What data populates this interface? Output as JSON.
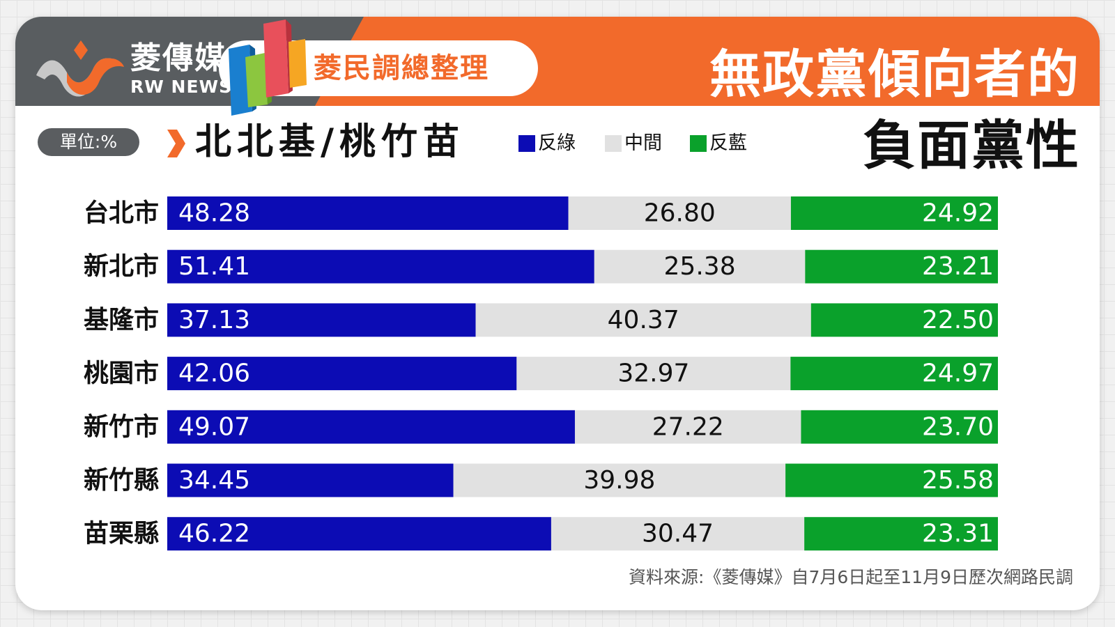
{
  "header": {
    "brand_zh": "菱傳媒",
    "brand_en": "RW NEWS",
    "badge": "菱民調總整理",
    "title_line1": "無政黨傾向者的",
    "title_line2": "負面黨性"
  },
  "unit_label": "單位:%",
  "region_title": "北北基/桃竹苗",
  "source": "資料來源:《菱傳媒》自7月6日起至11月9日歷次網路民調",
  "colors": {
    "orange": "#f26a2b",
    "dark_gray": "#595d60",
    "blue": "#0c0cb4",
    "gray": "#e1e1e1",
    "green": "#0aa12b"
  },
  "chart_data": {
    "type": "bar",
    "orientation": "horizontal",
    "stacked": true,
    "unit": "%",
    "categories": [
      "台北市",
      "新北市",
      "基隆市",
      "桃園市",
      "新竹市",
      "新竹縣",
      "苗栗縣"
    ],
    "series": [
      {
        "name": "反綠",
        "color": "#0c0cb4",
        "values": [
          48.28,
          51.41,
          37.13,
          42.06,
          49.07,
          34.45,
          46.22
        ]
      },
      {
        "name": "中間",
        "color": "#e1e1e1",
        "values": [
          26.8,
          25.38,
          40.37,
          32.97,
          27.22,
          39.98,
          30.47
        ]
      },
      {
        "name": "反藍",
        "color": "#0aa12b",
        "values": [
          24.92,
          23.21,
          22.5,
          24.97,
          23.7,
          25.58,
          23.31
        ]
      }
    ],
    "value_labels": [
      [
        "48.28",
        "26.80",
        "24.92"
      ],
      [
        "51.41",
        "25.38",
        "23.21"
      ],
      [
        "37.13",
        "40.37",
        "22.50"
      ],
      [
        "42.06",
        "32.97",
        "24.97"
      ],
      [
        "49.07",
        "27.22",
        "23.70"
      ],
      [
        "34.45",
        "39.98",
        "25.58"
      ],
      [
        "46.22",
        "30.47",
        "23.31"
      ]
    ],
    "legend_position": "top",
    "grid": false
  }
}
